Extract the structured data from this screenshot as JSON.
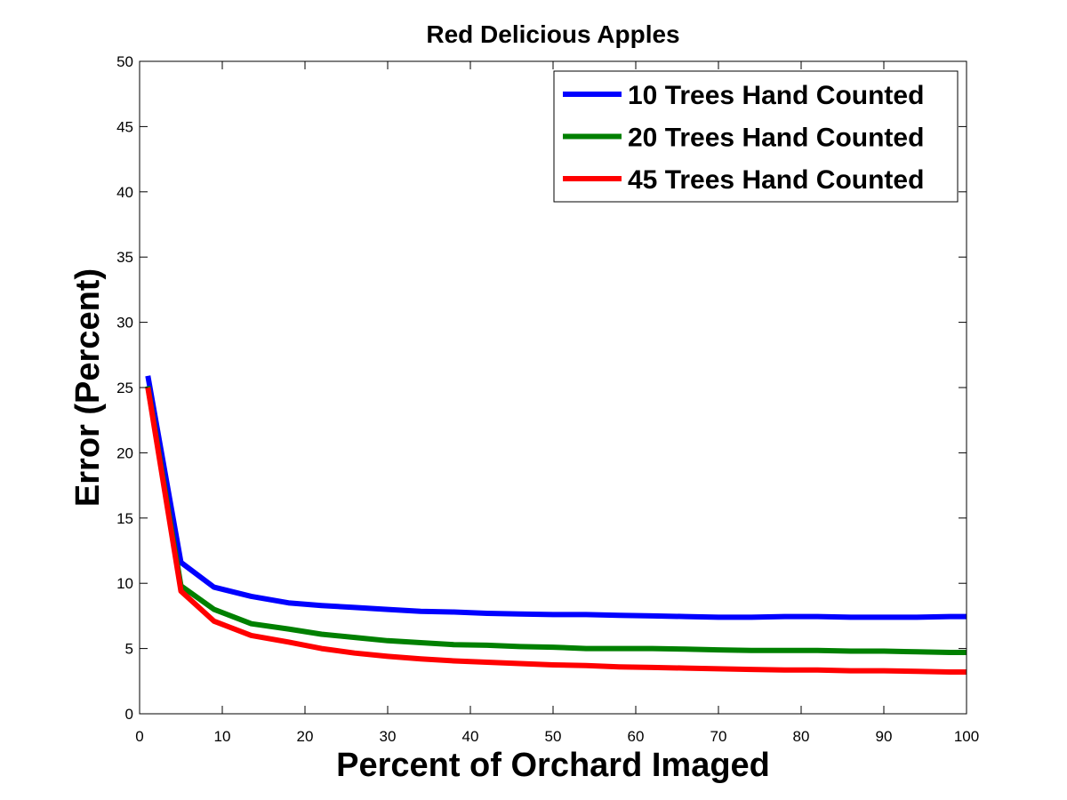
{
  "chart_data": {
    "type": "line",
    "title": "Red Delicious Apples",
    "xlabel": "Percent of Orchard Imaged",
    "ylabel": "Error (Percent)",
    "xlim": [
      0,
      100
    ],
    "ylim": [
      0,
      50
    ],
    "xticks": [
      0,
      10,
      20,
      30,
      40,
      50,
      60,
      70,
      80,
      90,
      100
    ],
    "yticks": [
      0,
      5,
      10,
      15,
      20,
      25,
      30,
      35,
      40,
      45,
      50
    ],
    "grid": false,
    "legend_position": "top-right",
    "x": [
      1,
      5,
      9,
      13.5,
      18,
      22,
      26,
      30,
      34,
      38,
      42,
      46,
      50,
      54,
      58,
      62,
      66,
      70,
      74,
      78,
      82,
      86,
      90,
      94,
      98,
      100
    ],
    "series": [
      {
        "name": "10 Trees Hand Counted",
        "color": "#0000ff",
        "values": [
          25.9,
          11.6,
          9.7,
          9.0,
          8.5,
          8.3,
          8.15,
          8.0,
          7.85,
          7.8,
          7.7,
          7.65,
          7.6,
          7.6,
          7.55,
          7.5,
          7.45,
          7.4,
          7.4,
          7.45,
          7.45,
          7.4,
          7.4,
          7.4,
          7.45,
          7.45
        ]
      },
      {
        "name": "20 Trees Hand Counted",
        "color": "#008000",
        "values": [
          25.1,
          9.8,
          8.0,
          6.9,
          6.5,
          6.1,
          5.85,
          5.6,
          5.45,
          5.3,
          5.25,
          5.15,
          5.1,
          5.0,
          5.0,
          5.0,
          4.95,
          4.9,
          4.85,
          4.85,
          4.85,
          4.8,
          4.8,
          4.75,
          4.7,
          4.7
        ]
      },
      {
        "name": "45 Trees Hand Counted",
        "color": "#ff0000",
        "values": [
          25.0,
          9.4,
          7.1,
          6.0,
          5.5,
          5.0,
          4.65,
          4.4,
          4.2,
          4.05,
          3.95,
          3.85,
          3.75,
          3.7,
          3.6,
          3.55,
          3.5,
          3.45,
          3.4,
          3.35,
          3.35,
          3.3,
          3.3,
          3.25,
          3.2,
          3.2
        ]
      }
    ]
  }
}
